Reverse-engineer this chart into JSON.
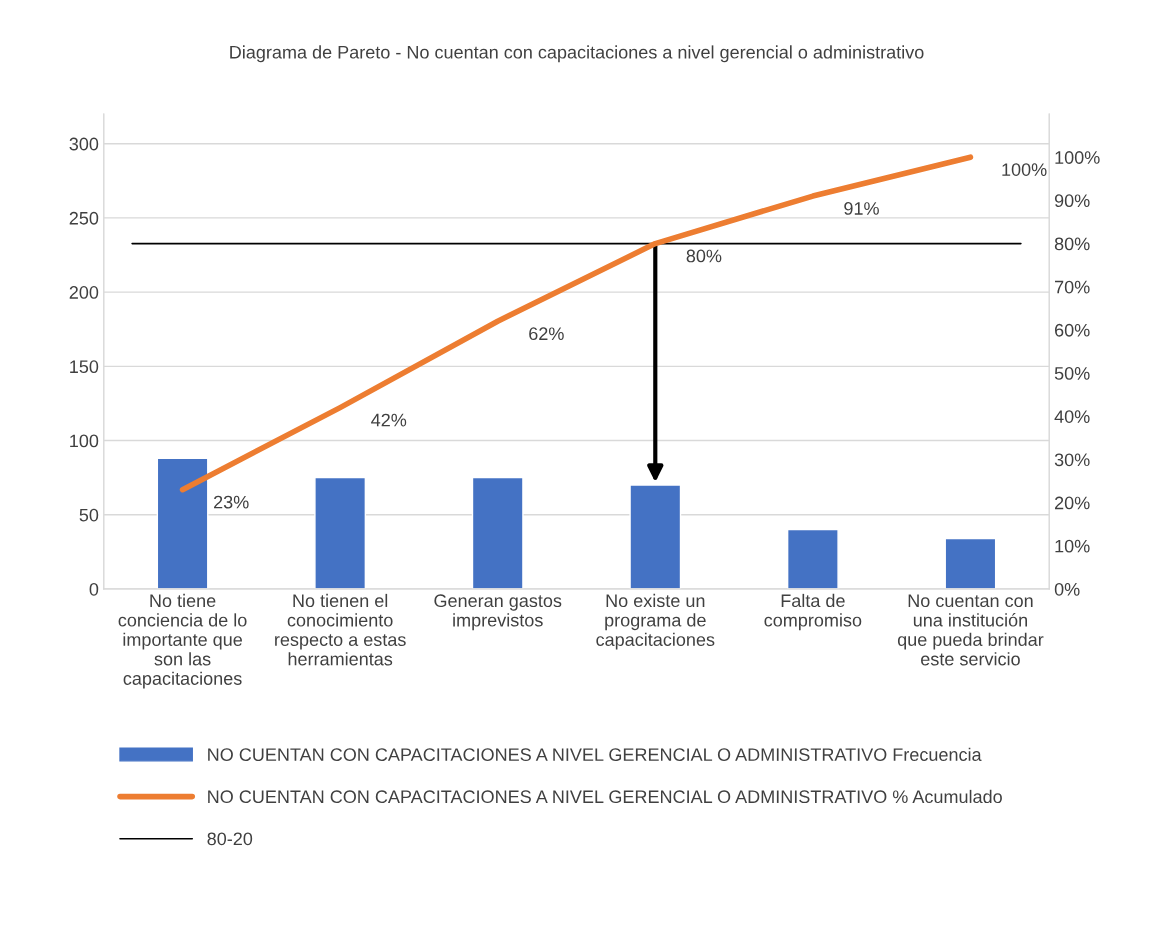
{
  "chart_data": {
    "type": "bar",
    "title": "Diagrama de Pareto - No cuentan con capacitaciones a nivel gerencial o administrativo",
    "categories": [
      "No tiene conciencia de lo importante que son las capacitaciones",
      "No tienen el conocimiento respecto a estas herramientas",
      "Generan gastos imprevistos",
      "No existe un programa de capacitaciones",
      "Falta de compromiso",
      "No cuentan con una institución que pueda brindar este servicio"
    ],
    "series": [
      {
        "name": "NO CUENTAN CON CAPACITACIONES A NIVEL GERENCIAL O ADMINISTRATIVO Frecuencia",
        "color": "#4472c4",
        "values": [
          88,
          75,
          75,
          70,
          40,
          34
        ]
      },
      {
        "name": "NO CUENTAN CON CAPACITACIONES A NIVEL GERENCIAL O ADMINISTRATIVO % Acumulado",
        "type": "line",
        "axis": "y2",
        "color": "#ed7d31",
        "values": [
          23,
          42,
          62,
          80,
          91,
          100
        ],
        "value_labels": [
          "23%",
          "42%",
          "62%",
          "80%",
          "91%",
          "100%"
        ]
      }
    ],
    "ylim": [
      0,
      320
    ],
    "yticks": [
      0,
      50,
      100,
      150,
      200,
      250,
      300
    ],
    "y2lim": [
      0,
      110
    ],
    "y2ticks": [
      {
        "value": 0,
        "label": "0%"
      },
      {
        "value": 10,
        "label": "10%"
      },
      {
        "value": 20,
        "label": "20%"
      },
      {
        "value": 30,
        "label": "30%"
      },
      {
        "value": 40,
        "label": "40%"
      },
      {
        "value": 50,
        "label": "50%"
      },
      {
        "value": 60,
        "label": "60%"
      },
      {
        "value": 70,
        "label": "70%"
      },
      {
        "value": 80,
        "label": "80%"
      },
      {
        "value": 90,
        "label": "90%"
      },
      {
        "value": 100,
        "label": "100%"
      }
    ],
    "ref_lines": [
      {
        "axis": "y2",
        "value": 80,
        "label": "80-20",
        "color": "#000000"
      }
    ],
    "grid": "y",
    "legend": "bottom"
  }
}
